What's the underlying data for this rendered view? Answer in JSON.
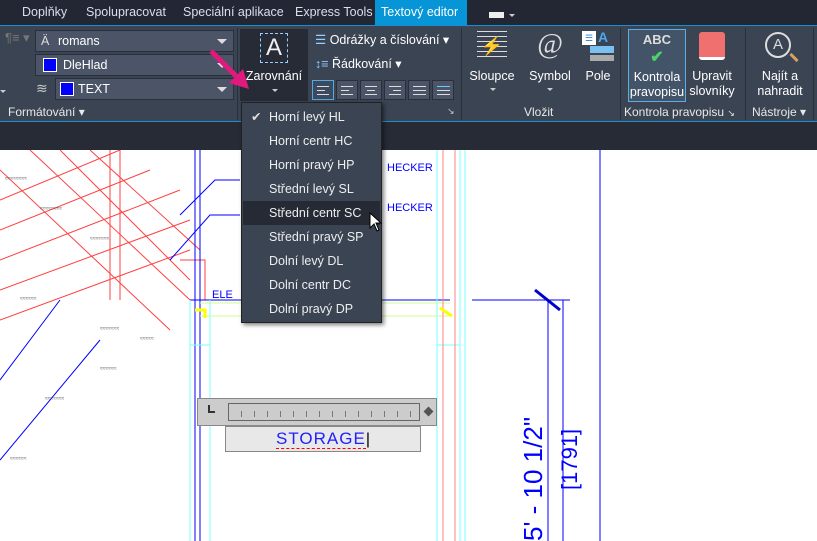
{
  "tabs": [
    {
      "label": "Doplňky"
    },
    {
      "label": "Spolupracovat"
    },
    {
      "label": "Speciální aplikace"
    },
    {
      "label": "Express Tools"
    },
    {
      "label": "Textový editor",
      "active": true
    }
  ],
  "formatting": {
    "font": "romans",
    "color": "DleHlad",
    "layer": "TEXT",
    "label": "Formátování",
    "swatch_color": "#0000ff"
  },
  "paragraph": {
    "justification_label": "Zarovnání",
    "bullets_label": "Odrážky a číslování",
    "line_spacing_label": "Řádkování",
    "alignment_buttons": [
      "justification-top-left",
      "align-left",
      "align-center",
      "align-right",
      "justify",
      "distribute"
    ]
  },
  "insert": {
    "columns": "Sloupce",
    "symbol": "Symbol",
    "field": "Pole",
    "label": "Vložit"
  },
  "spell": {
    "check": "Kontrola pravopisu",
    "check_l1": "Kontrola",
    "check_l2": "pravopisu",
    "dict_l1": "Upravit",
    "dict_l2": "slovníky",
    "label": "Kontrola pravopisu"
  },
  "tools": {
    "find_l1": "Najít a",
    "find_l2": "nahradit",
    "label": "Nástroje"
  },
  "justification_menu": {
    "selected": "Horní levý HL",
    "hovered": "Střední centr SC",
    "items": [
      "Horní levý HL",
      "Horní centr HC",
      "Horní pravý HP",
      "Střední levý SL",
      "Střední centr SC",
      "Střední pravý SP",
      "Dolní levý DL",
      "Dolní centr DC",
      "Dolní pravý DP"
    ]
  },
  "drawing": {
    "editor_text": "STORAGE",
    "label_checker1": "HECKER",
    "label_checker2": "HECKER",
    "label_el": "ELE",
    "dimension": "5' - 10 1/2\"",
    "dimension_metric": "[1791]"
  },
  "colors": {
    "accent": "#0696d7",
    "ribbon": "#3b4453",
    "annotation": "#e0197d"
  }
}
